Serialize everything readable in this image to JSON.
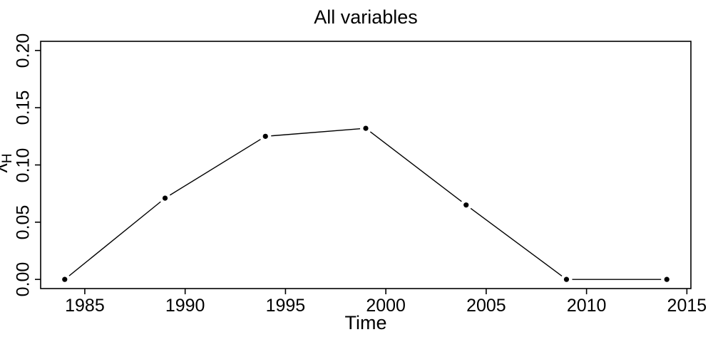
{
  "figure": {
    "title": "All variables",
    "xlabel": "Time",
    "ylabel": {
      "base": "λ",
      "subscript": "H"
    }
  },
  "chart_data": {
    "type": "line",
    "title": "All variables",
    "xlabel": "Time",
    "ylabel": "λ_H",
    "x": [
      1984,
      1989,
      1994,
      1999,
      2004,
      2009,
      2014
    ],
    "values": [
      0.0,
      0.071,
      0.125,
      0.132,
      0.065,
      0.0,
      0.0
    ],
    "xlim": [
      1982.8,
      2015.2
    ],
    "ylim": [
      -0.008,
      0.208
    ],
    "xticks": [
      1985,
      1990,
      1995,
      2000,
      2005,
      2010,
      2015
    ],
    "xtick_labels": [
      "1985",
      "1990",
      "1995",
      "2000",
      "2005",
      "2010",
      "2015"
    ],
    "yticks": [
      0.0,
      0.05,
      0.1,
      0.15,
      0.2
    ],
    "ytick_labels": [
      "0.00",
      "0.05",
      "0.10",
      "0.15",
      "0.20"
    ],
    "ytick_labels_rotated": true,
    "grid": false,
    "legend_position": "none",
    "marker": "filled-circle",
    "line_style": "solid-with-gaps-around-points",
    "colors": {
      "line": "#000000",
      "marker": "#000000",
      "axis": "#000000",
      "text": "#000000",
      "background": "#ffffff"
    }
  }
}
